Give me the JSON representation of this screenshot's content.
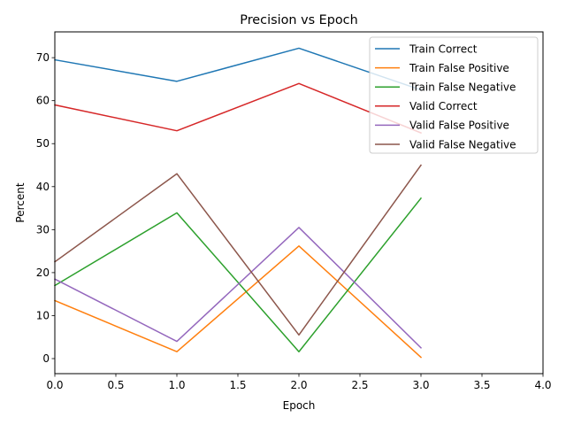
{
  "chart_data": {
    "type": "line",
    "title": "Precision vs Epoch",
    "xlabel": "Epoch",
    "ylabel": "Percent",
    "xlim": [
      0,
      4
    ],
    "ylim": [
      -3.5,
      76
    ],
    "xticks": [
      "0.0",
      "0.5",
      "1.0",
      "1.5",
      "2.0",
      "2.5",
      "3.0",
      "3.5",
      "4.0"
    ],
    "yticks": [
      "0",
      "10",
      "20",
      "30",
      "40",
      "50",
      "60",
      "70"
    ],
    "x": [
      0,
      1,
      2,
      3
    ],
    "grid": false,
    "legend_position": "top-right",
    "series": [
      {
        "name": "Train Correct",
        "color": "#1f77b4",
        "values": [
          69.5,
          64.5,
          72.2,
          62.5
        ]
      },
      {
        "name": "Train False Positive",
        "color": "#ff7f0e",
        "values": [
          13.5,
          1.6,
          26.2,
          0.3
        ]
      },
      {
        "name": "Train False Negative",
        "color": "#2ca02c",
        "values": [
          17.0,
          33.9,
          1.6,
          37.3
        ]
      },
      {
        "name": "Valid Correct",
        "color": "#d62728",
        "values": [
          59.0,
          53.0,
          64.0,
          52.5
        ]
      },
      {
        "name": "Valid False Positive",
        "color": "#9467bd",
        "values": [
          18.5,
          4.0,
          30.5,
          2.5
        ]
      },
      {
        "name": "Valid False Negative",
        "color": "#8c564b",
        "values": [
          22.5,
          43.0,
          5.5,
          45.0
        ]
      }
    ]
  }
}
